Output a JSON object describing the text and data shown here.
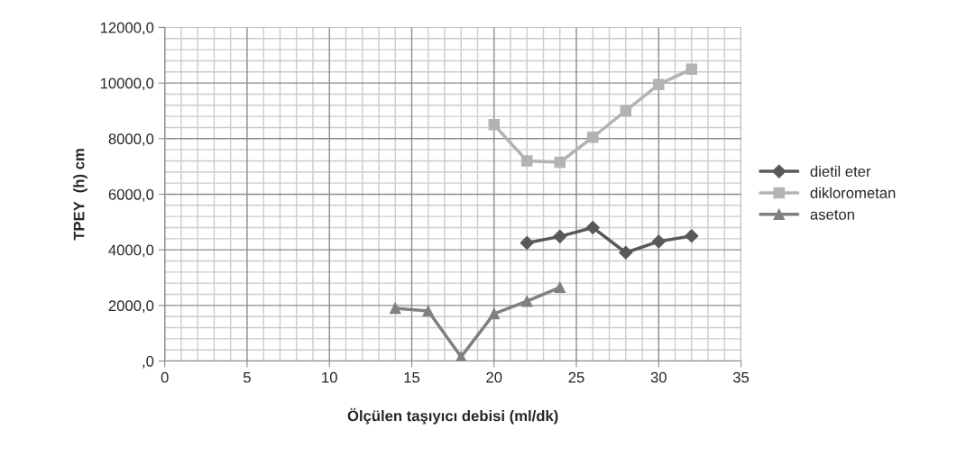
{
  "chart_data": {
    "type": "line",
    "xlabel": "Ölçülen taşıyıcı debisi (ml/dk)",
    "ylabel": "TPEY  (h) cm",
    "series": [
      {
        "name": "dietil eter",
        "color": "#595959",
        "marker": "diamond",
        "x": [
          22,
          24,
          26,
          28,
          30,
          32
        ],
        "values": [
          4250,
          4480,
          4800,
          3900,
          4300,
          4500
        ]
      },
      {
        "name": "diklorometan",
        "color": "#b3b3b3",
        "marker": "square",
        "x": [
          20,
          22,
          24,
          26,
          28,
          30,
          32
        ],
        "values": [
          8500,
          7200,
          7150,
          8050,
          9000,
          9950,
          10500
        ]
      },
      {
        "name": "aseton",
        "color": "#808080",
        "marker": "triangle",
        "x": [
          14,
          16,
          18,
          20,
          22,
          24
        ],
        "values": [
          1900,
          1800,
          150,
          1700,
          2150,
          2650
        ]
      }
    ],
    "xlim": [
      0,
      35
    ],
    "xticks": [
      0,
      5,
      10,
      15,
      20,
      25,
      30,
      35
    ],
    "ylim": [
      0,
      12000
    ],
    "yticks": [
      {
        "value": 0,
        "label": ",0"
      },
      {
        "value": 2000,
        "label": "2000,0"
      },
      {
        "value": 4000,
        "label": "4000,0"
      },
      {
        "value": 6000,
        "label": "6000,0"
      },
      {
        "value": 8000,
        "label": "8000,0"
      },
      {
        "value": 10000,
        "label": "10000,0"
      },
      {
        "value": 12000,
        "label": "12000,0"
      }
    ],
    "grid": true,
    "legend": "right",
    "line_style": "solid"
  }
}
